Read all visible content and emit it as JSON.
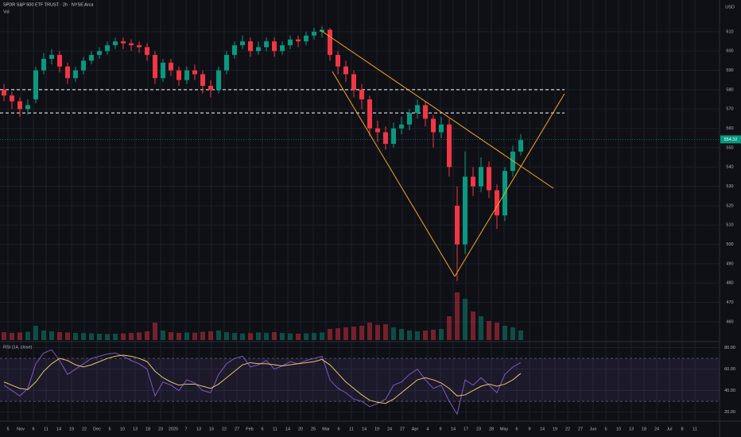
{
  "chart_data": {
    "type": "candlestick",
    "title": "SPDR S&P 500 ETF TRUST · 2h · NYSE Arca",
    "volume_label": "Vol",
    "rsi_label": "RSI (14, close)",
    "currency": "USD",
    "ylim": [
      449.7,
      626.4
    ],
    "yticks": [
      460,
      470,
      480,
      490,
      500,
      510,
      520,
      530,
      540,
      550,
      560,
      570,
      580,
      590,
      600,
      610
    ],
    "open": [
      580,
      577,
      574,
      570,
      575,
      590,
      596,
      598,
      592,
      586,
      590,
      595,
      598,
      600,
      603,
      605,
      604,
      603,
      602,
      598,
      586,
      594,
      590,
      585,
      590,
      588,
      582,
      580,
      590,
      598,
      603,
      605,
      600,
      602,
      605,
      600,
      603,
      606,
      605,
      608,
      610,
      611,
      598,
      592,
      588,
      580,
      575,
      560,
      558,
      552,
      560,
      562,
      568,
      572,
      565,
      558,
      562,
      520,
      500,
      535,
      530,
      540,
      528,
      515,
      538,
      548
    ],
    "high": [
      583,
      579,
      576,
      575,
      592,
      599,
      601,
      600,
      594,
      592,
      597,
      600,
      602,
      605,
      607,
      607,
      606,
      605,
      604,
      600,
      596,
      596,
      592,
      592,
      593,
      590,
      585,
      592,
      600,
      605,
      608,
      607,
      605,
      607,
      607,
      605,
      608,
      608,
      610,
      612,
      613,
      612,
      600,
      595,
      590,
      583,
      577,
      564,
      561,
      563,
      566,
      570,
      575,
      574,
      567,
      566,
      565,
      530,
      548,
      540,
      545,
      543,
      531,
      540,
      551,
      557
    ],
    "low": [
      574,
      570,
      566,
      567,
      573,
      588,
      593,
      589,
      583,
      584,
      588,
      593,
      596,
      598,
      601,
      601,
      600,
      599,
      595,
      583,
      584,
      587,
      582,
      583,
      585,
      578,
      576,
      578,
      588,
      596,
      601,
      597,
      598,
      600,
      597,
      598,
      601,
      602,
      603,
      606,
      607,
      595,
      588,
      584,
      576,
      570,
      556,
      553,
      549,
      550,
      557,
      559,
      565,
      561,
      550,
      555,
      535,
      481,
      495,
      525,
      527,
      524,
      508,
      512,
      535,
      546
    ],
    "close": [
      577,
      574,
      570,
      572,
      590,
      596,
      598,
      592,
      586,
      590,
      595,
      598,
      600,
      603,
      605,
      604,
      603,
      602,
      598,
      586,
      594,
      590,
      585,
      590,
      588,
      582,
      580,
      590,
      598,
      603,
      605,
      600,
      602,
      605,
      600,
      603,
      606,
      605,
      608,
      610,
      611,
      598,
      592,
      588,
      580,
      575,
      560,
      558,
      552,
      560,
      562,
      568,
      572,
      565,
      558,
      562,
      540,
      500,
      535,
      530,
      540,
      528,
      515,
      538,
      548,
      554
    ],
    "volume": [
      50,
      45,
      48,
      52,
      90,
      60,
      55,
      50,
      48,
      45,
      44,
      42,
      40,
      38,
      40,
      42,
      45,
      48,
      55,
      110,
      60,
      50,
      45,
      48,
      46,
      52,
      55,
      60,
      50,
      45,
      42,
      44,
      48,
      46,
      50,
      45,
      42,
      40,
      42,
      45,
      48,
      70,
      75,
      80,
      85,
      90,
      110,
      95,
      100,
      80,
      70,
      60,
      55,
      60,
      65,
      70,
      150,
      300,
      260,
      180,
      150,
      120,
      110,
      90,
      80,
      60
    ],
    "volume_lim": [
      0,
      2150
    ],
    "rsi": [
      45,
      40,
      35,
      42,
      65,
      75,
      78,
      68,
      55,
      60,
      65,
      70,
      72,
      74,
      75,
      72,
      68,
      65,
      60,
      35,
      48,
      45,
      40,
      50,
      47,
      40,
      38,
      55,
      65,
      70,
      72,
      62,
      64,
      68,
      60,
      63,
      67,
      65,
      68,
      70,
      72,
      50,
      42,
      38,
      32,
      30,
      25,
      28,
      32,
      45,
      48,
      55,
      60,
      50,
      42,
      45,
      30,
      18,
      50,
      45,
      52,
      45,
      38,
      55,
      62,
      66
    ],
    "rsi_ma": [
      48,
      45,
      42,
      41,
      48,
      58,
      65,
      70,
      68,
      64,
      62,
      64,
      67,
      70,
      72,
      73,
      72,
      70,
      67,
      58,
      52,
      48,
      45,
      46,
      46,
      44,
      42,
      46,
      52,
      58,
      64,
      66,
      65,
      65,
      64,
      63,
      64,
      65,
      66,
      67,
      69,
      64,
      56,
      48,
      42,
      36,
      31,
      29,
      28,
      32,
      38,
      44,
      50,
      52,
      50,
      47,
      42,
      35,
      36,
      40,
      44,
      46,
      44,
      46,
      50,
      56
    ],
    "rsi_lim": [
      11.5,
      85.6
    ],
    "rsi_ticks": [
      {
        "value": 80,
        "label": "80.00"
      },
      {
        "value": 60,
        "label": "60.00"
      },
      {
        "value": 40,
        "label": "40.00"
      },
      {
        "value": 20,
        "label": "20.00"
      }
    ],
    "rsi_bands": [
      70,
      30
    ],
    "levels": [
      580,
      568
    ],
    "last_price": {
      "value": 554.32,
      "label": "554.32"
    },
    "up_color": "#089981",
    "down_color": "#f23645",
    "time_labels": [
      "5",
      "Nov",
      "6",
      "11",
      "14",
      "19",
      "22",
      "Dec",
      "5",
      "10",
      "13",
      "18",
      "23",
      "2025",
      "7",
      "13",
      "16",
      "22",
      "27",
      "Feb",
      "6",
      "11",
      "14",
      "20",
      "25",
      "Mar",
      "6",
      "11",
      "14",
      "19",
      "24",
      "27",
      "Apr",
      "4",
      "9",
      "14",
      "17",
      "23",
      "28",
      "May",
      "6",
      "9",
      "14",
      "19",
      "22",
      "27",
      "Jun",
      "5",
      "10",
      "13",
      "18",
      "24",
      "Jul",
      "8",
      "11"
    ]
  }
}
